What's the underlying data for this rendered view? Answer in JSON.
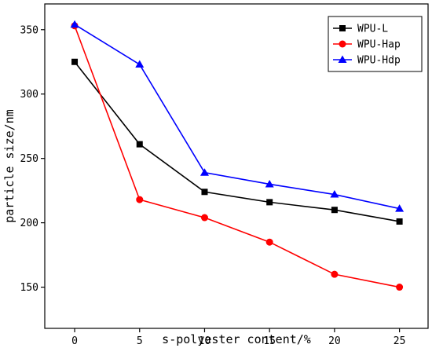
{
  "chart_data": {
    "type": "line",
    "title": "",
    "xlabel": "s-polyester content/%",
    "ylabel": "particle size/nm",
    "x": [
      0,
      5,
      10,
      15,
      20,
      25
    ],
    "xticks": [
      0,
      5,
      10,
      15,
      20,
      25
    ],
    "yticks": [
      150,
      200,
      250,
      300,
      350
    ],
    "xlim": [
      -2.3,
      27.2
    ],
    "ylim": [
      118,
      370
    ],
    "grid": false,
    "legend_position": "top-right",
    "series": [
      {
        "name": "WPU-L",
        "color": "#000000",
        "marker": "square",
        "values": [
          325,
          261,
          224,
          216,
          210,
          201
        ]
      },
      {
        "name": "WPU-Hap",
        "color": "#ff0000",
        "marker": "circle",
        "values": [
          353,
          218,
          204,
          185,
          160,
          150
        ]
      },
      {
        "name": "WPU-Hdp",
        "color": "#0000ff",
        "marker": "triangle",
        "values": [
          354,
          323,
          239,
          230,
          222,
          211
        ]
      }
    ]
  }
}
